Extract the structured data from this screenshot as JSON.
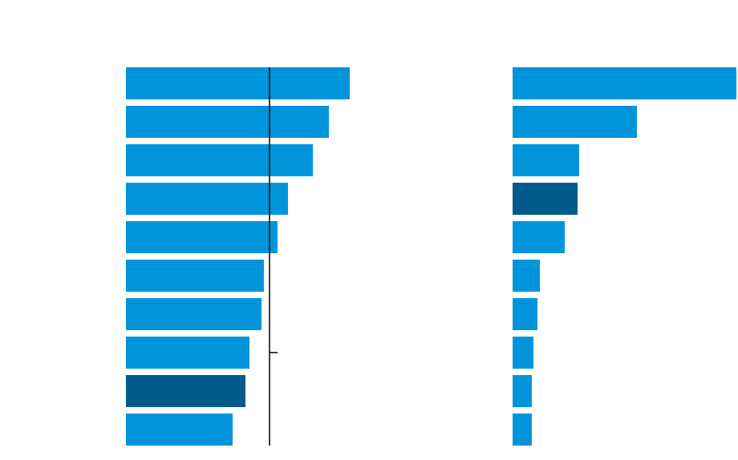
{
  "chart_data": [
    {
      "type": "bar",
      "orientation": "horizontal",
      "values": [
        279,
        253,
        233,
        202,
        189,
        172,
        169,
        154,
        149,
        133
      ],
      "colors": [
        "#0095db",
        "#0095db",
        "#0095db",
        "#0095db",
        "#0095db",
        "#0095db",
        "#0095db",
        "#0095db",
        "#005a8c",
        "#0095db"
      ],
      "xlim": [
        0,
        300
      ],
      "reference_line": 179,
      "reference_color": "#000000"
    },
    {
      "type": "bar",
      "orientation": "horizontal",
      "values": [
        279,
        155,
        83,
        81,
        65,
        34,
        31,
        26,
        24,
        24
      ],
      "colors": [
        "#0095db",
        "#0095db",
        "#0095db",
        "#005a8c",
        "#0095db",
        "#0095db",
        "#0095db",
        "#0095db",
        "#0095db",
        "#0095db"
      ],
      "xlim": [
        0,
        280
      ]
    }
  ]
}
